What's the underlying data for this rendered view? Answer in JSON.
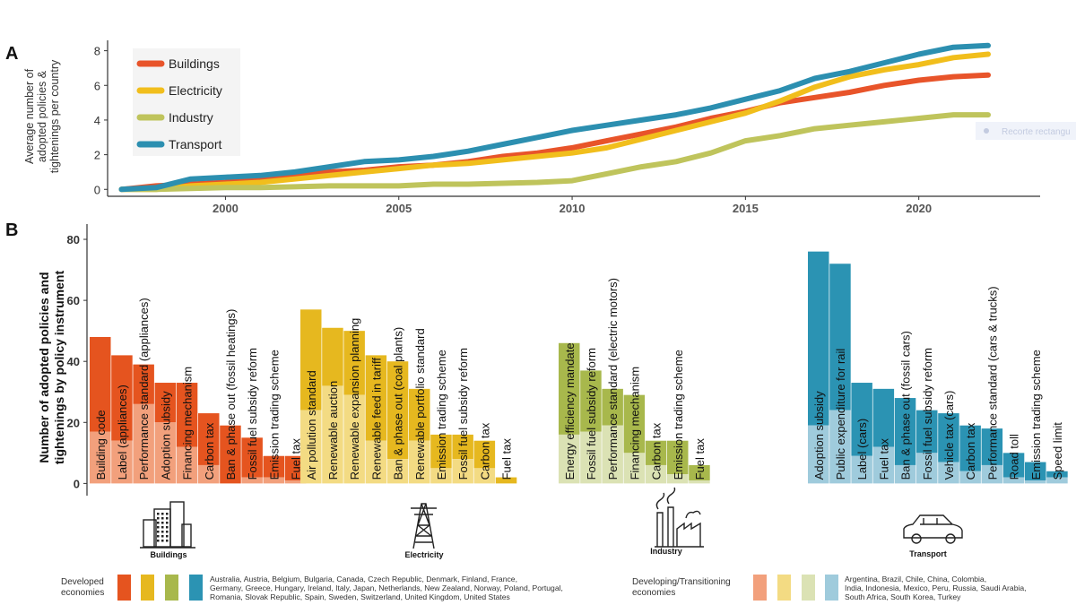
{
  "chart_data": [
    {
      "panel": "A",
      "type": "line",
      "ylabel": "Average number of adopted policies & tightenings per country",
      "ylabel_lines": [
        "Average number of",
        "adopted policies &",
        "tightenings per country"
      ],
      "xlabel": "",
      "xlim": [
        1996.6,
        2023.5
      ],
      "ylim": [
        -0.4,
        8.6
      ],
      "x_ticks": [
        2000,
        2005,
        2010,
        2015,
        2020
      ],
      "y_ticks": [
        0,
        2,
        4,
        6,
        8
      ],
      "legend_position": "top-left",
      "x": [
        1997,
        1998,
        1999,
        2000,
        2001,
        2002,
        2003,
        2004,
        2005,
        2006,
        2007,
        2008,
        2009,
        2010,
        2011,
        2012,
        2013,
        2014,
        2015,
        2016,
        2017,
        2018,
        2019,
        2020,
        2021,
        2022
      ],
      "series": [
        {
          "name": "Buildings",
          "color": "#e8542a",
          "values": [
            0,
            0.2,
            0.3,
            0.4,
            0.6,
            0.8,
            1.0,
            1.1,
            1.3,
            1.4,
            1.6,
            1.9,
            2.1,
            2.4,
            2.8,
            3.2,
            3.6,
            4.1,
            4.5,
            5.0,
            5.3,
            5.6,
            6.0,
            6.3,
            6.5,
            6.6
          ]
        },
        {
          "name": "Electricity",
          "color": "#f1be1c",
          "values": [
            0,
            0,
            0.2,
            0.3,
            0.4,
            0.6,
            0.8,
            1.0,
            1.2,
            1.4,
            1.5,
            1.7,
            1.9,
            2.1,
            2.4,
            2.9,
            3.4,
            3.9,
            4.4,
            5.1,
            5.9,
            6.5,
            6.9,
            7.2,
            7.6,
            7.8
          ]
        },
        {
          "name": "Industry",
          "color": "#bfc45c",
          "values": [
            0,
            0,
            0.05,
            0.1,
            0.1,
            0.15,
            0.2,
            0.2,
            0.2,
            0.3,
            0.3,
            0.35,
            0.4,
            0.5,
            0.9,
            1.3,
            1.6,
            2.1,
            2.8,
            3.1,
            3.5,
            3.7,
            3.9,
            4.1,
            4.3,
            4.3
          ]
        },
        {
          "name": "Transport",
          "color": "#2c8fb0",
          "values": [
            0,
            0.1,
            0.6,
            0.7,
            0.8,
            1.0,
            1.3,
            1.6,
            1.7,
            1.9,
            2.2,
            2.6,
            3.0,
            3.4,
            3.7,
            4.0,
            4.3,
            4.7,
            5.2,
            5.7,
            6.4,
            6.8,
            7.3,
            7.8,
            8.2,
            8.3
          ]
        }
      ]
    },
    {
      "panel": "B",
      "type": "bar",
      "ylabel": "Number of adopted policies and tightenings by policy instrument",
      "ylabel_lines": [
        "Number of adopted policies and",
        "tightenings by policy instrument"
      ],
      "ylim": [
        -4,
        85
      ],
      "y_ticks": [
        0,
        20,
        40,
        60,
        80
      ],
      "sectors": [
        {
          "name": "Buildings",
          "color_developed": "#e5541f",
          "color_developing": "#f2a07c",
          "bars": [
            {
              "label": "Building code",
              "total": 48,
              "developing": 17
            },
            {
              "label": "Label (appliances)",
              "total": 42,
              "developing": 14
            },
            {
              "label": "Performance standard (appliances)",
              "total": 39,
              "developing": 26
            },
            {
              "label": "Adoption subsidy",
              "total": 33,
              "developing": 20
            },
            {
              "label": "Financing mechanism",
              "total": 33,
              "developing": 12
            },
            {
              "label": "Carbon tax",
              "total": 23,
              "developing": 6
            },
            {
              "label": "Ban & phase out (fossil heatings)",
              "total": 19,
              "developing": 0
            },
            {
              "label": "Fossil fuel subsidy reform",
              "total": 15,
              "developing": 2
            },
            {
              "label": "Emission trading scheme",
              "total": 9,
              "developing": 2
            },
            {
              "label": "Fuel tax",
              "total": 9,
              "developing": 1
            }
          ]
        },
        {
          "name": "Electricity",
          "color_developed": "#e6b81f",
          "color_developing": "#f3db83",
          "bars": [
            {
              "label": "Air pollution standard",
              "total": 57,
              "developing": 24
            },
            {
              "label": "Renewable auction",
              "total": 51,
              "developing": 32
            },
            {
              "label": "Renewable expansion planning",
              "total": 50,
              "developing": 29
            },
            {
              "label": "Renewable feed in tariff",
              "total": 42,
              "developing": 14
            },
            {
              "label": "Ban & phase out (coal plants)",
              "total": 40,
              "developing": 8
            },
            {
              "label": "Renewable portfolio standard",
              "total": 31,
              "developing": 14
            },
            {
              "label": "Emission trading scheme",
              "total": 16,
              "developing": 5
            },
            {
              "label": "Fossil fuel subsidy reform",
              "total": 16,
              "developing": 8
            },
            {
              "label": "Carbon tax",
              "total": 14,
              "developing": 5
            },
            {
              "label": "Fuel tax",
              "total": 2,
              "developing": 0
            }
          ]
        },
        {
          "name": "Industry",
          "color_developed": "#a8b84c",
          "color_developing": "#dbe2b4",
          "bars": [
            {
              "label": "Energy efficiency mandate",
              "total": 46,
              "developing": 16
            },
            {
              "label": "Fossil fuel subsidy reform",
              "total": 37,
              "developing": 17
            },
            {
              "label": "Performance standard (electric motors)",
              "total": 31,
              "developing": 19
            },
            {
              "label": "Financing mechanism",
              "total": 29,
              "developing": 10
            },
            {
              "label": "Carbon tax",
              "total": 14,
              "developing": 6
            },
            {
              "label": "Emission trading scheme",
              "total": 14,
              "developing": 3
            },
            {
              "label": "Fuel tax",
              "total": 6,
              "developing": 1
            }
          ]
        },
        {
          "name": "Transport",
          "color_developed": "#2b93b3",
          "color_developing": "#9fcbdc",
          "bars": [
            {
              "label": "Adoption subsidy",
              "total": 76,
              "developing": 19
            },
            {
              "label": "Public expenditure for rail",
              "total": 72,
              "developing": 24
            },
            {
              "label": "Label (cars)",
              "total": 33,
              "developing": 9
            },
            {
              "label": "Fuel tax",
              "total": 31,
              "developing": 12
            },
            {
              "label": "Ban & phase out (fossil cars)",
              "total": 28,
              "developing": 6
            },
            {
              "label": "Fossil fuel subsidy reform",
              "total": 24,
              "developing": 10
            },
            {
              "label": "Vehicle tax (cars)",
              "total": 23,
              "developing": 7
            },
            {
              "label": "Carbon tax",
              "total": 19,
              "developing": 4
            },
            {
              "label": "Performance standard (cars & trucks)",
              "total": 18,
              "developing": 6
            },
            {
              "label": "Road toll",
              "total": 10,
              "developing": 2
            },
            {
              "label": "Emission trading scheme",
              "total": 7,
              "developing": 1
            },
            {
              "label": "Speed limit",
              "total": 4,
              "developing": 2
            }
          ]
        }
      ]
    }
  ],
  "panel_labels": {
    "a": "A",
    "b": "B"
  },
  "sector_icons": [
    {
      "name": "Buildings",
      "icon": "buildings-icon"
    },
    {
      "name": "Electricity",
      "icon": "transmission-tower-icon"
    },
    {
      "name": "Industry",
      "icon": "factory-icon"
    },
    {
      "name": "Transport",
      "icon": "car-icon"
    }
  ],
  "bottom_legend": {
    "developed_label": "Developed economies",
    "developed_label_lines": [
      "Developed",
      "economies"
    ],
    "developed_countries_lines": [
      "Australia, Austria, Belgium, Bulgaria, Canada, Czech Republic, Denmark, Finland, France,",
      "Germany, Greece, Hungary, Ireland, Italy, Japan, Netherlands, New Zealand, Norway, Poland, Portugal,",
      "Romania, Slovak Republic, Spain, Sweden, Switzerland, United Kingdom, United States"
    ],
    "developing_label": "Developing/Transitioning economies",
    "developing_label_lines": [
      "Developing/Transitioning",
      "economies"
    ],
    "developing_countries_lines": [
      "Argentina, Brazil, Chile, China, Colombia,",
      "India, Indonesia, Mexico, Peru, Russia, Saudi Arabia,",
      "South Africa, South Korea, Turkey"
    ],
    "developed_colors": [
      "#e5541f",
      "#e6b81f",
      "#a8b84c",
      "#2b93b3"
    ],
    "developing_colors": [
      "#f2a07c",
      "#f3db83",
      "#dbe2b4",
      "#9fcbdc"
    ]
  },
  "overlay_text": "Recorte rectangu"
}
